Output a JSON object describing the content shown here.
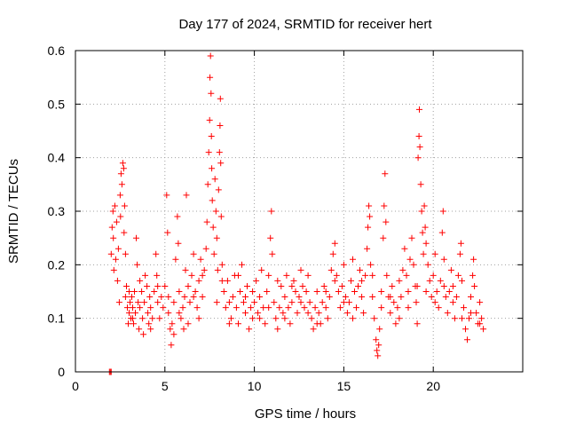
{
  "chart_data": {
    "type": "scatter",
    "title": "Day 177 of 2024, SRMTID for receiver hert",
    "xlabel": "GPS time / hours",
    "ylabel": "SRMTID / TECUs",
    "xlim": [
      0,
      25
    ],
    "ylim": [
      0,
      0.6
    ],
    "xticks": [
      0,
      5,
      10,
      15,
      20
    ],
    "yticks": [
      0,
      0.1,
      0.2,
      0.3,
      0.4,
      0.5,
      0.6
    ],
    "grid": true,
    "marker": "plus",
    "color": "#ff0000",
    "series": [
      {
        "name": "SRMTID",
        "points": [
          [
            1.9,
            0.0
          ],
          [
            1.95,
            0.0
          ],
          [
            2.0,
            0.0
          ],
          [
            2.0,
            0.22
          ],
          [
            2.05,
            0.27
          ],
          [
            2.1,
            0.3
          ],
          [
            2.12,
            0.25
          ],
          [
            2.15,
            0.19
          ],
          [
            2.2,
            0.31
          ],
          [
            2.25,
            0.21
          ],
          [
            2.3,
            0.28
          ],
          [
            2.35,
            0.17
          ],
          [
            2.4,
            0.23
          ],
          [
            2.45,
            0.13
          ],
          [
            2.5,
            0.33
          ],
          [
            2.52,
            0.29
          ],
          [
            2.55,
            0.37
          ],
          [
            2.6,
            0.35
          ],
          [
            2.65,
            0.39
          ],
          [
            2.7,
            0.38
          ],
          [
            2.72,
            0.26
          ],
          [
            2.75,
            0.31
          ],
          [
            2.8,
            0.22
          ],
          [
            2.85,
            0.16
          ],
          [
            2.9,
            0.12
          ],
          [
            2.95,
            0.09
          ],
          [
            3.0,
            0.11
          ],
          [
            3.05,
            0.13
          ],
          [
            3.1,
            0.1
          ],
          [
            3.15,
            0.14
          ],
          [
            3.2,
            0.12
          ],
          [
            3.25,
            0.09
          ],
          [
            3.3,
            0.15
          ],
          [
            3.35,
            0.11
          ],
          [
            3.4,
            0.25
          ],
          [
            3.45,
            0.2
          ],
          [
            3.5,
            0.13
          ],
          [
            3.55,
            0.08
          ],
          [
            3.6,
            0.12
          ],
          [
            3.7,
            0.15
          ],
          [
            3.75,
            0.1
          ],
          [
            3.8,
            0.07
          ],
          [
            3.85,
            0.13
          ],
          [
            3.9,
            0.18
          ],
          [
            4.0,
            0.16
          ],
          [
            4.05,
            0.11
          ],
          [
            4.1,
            0.09
          ],
          [
            4.15,
            0.14
          ],
          [
            4.2,
            0.12
          ],
          [
            4.3,
            0.1
          ],
          [
            4.4,
            0.15
          ],
          [
            4.5,
            0.22
          ],
          [
            4.55,
            0.18
          ],
          [
            4.6,
            0.13
          ],
          [
            4.7,
            0.1
          ],
          [
            4.8,
            0.14
          ],
          [
            4.9,
            0.12
          ],
          [
            5.0,
            0.16
          ],
          [
            5.1,
            0.33
          ],
          [
            5.15,
            0.26
          ],
          [
            5.2,
            0.11
          ],
          [
            5.3,
            0.08
          ],
          [
            5.35,
            0.05
          ],
          [
            5.4,
            0.09
          ],
          [
            5.5,
            0.13
          ],
          [
            5.6,
            0.21
          ],
          [
            5.7,
            0.29
          ],
          [
            5.75,
            0.24
          ],
          [
            5.8,
            0.15
          ],
          [
            5.9,
            0.1
          ],
          [
            6.0,
            0.12
          ],
          [
            6.05,
            0.08
          ],
          [
            6.1,
            0.14
          ],
          [
            6.15,
            0.19
          ],
          [
            6.2,
            0.33
          ],
          [
            6.3,
            0.16
          ],
          [
            6.4,
            0.13
          ],
          [
            6.5,
            0.18
          ],
          [
            6.6,
            0.22
          ],
          [
            6.7,
            0.15
          ],
          [
            6.8,
            0.12
          ],
          [
            6.9,
            0.17
          ],
          [
            7.0,
            0.21
          ],
          [
            7.1,
            0.14
          ],
          [
            7.2,
            0.19
          ],
          [
            7.3,
            0.23
          ],
          [
            7.35,
            0.28
          ],
          [
            7.4,
            0.35
          ],
          [
            7.45,
            0.41
          ],
          [
            7.5,
            0.47
          ],
          [
            7.52,
            0.55
          ],
          [
            7.55,
            0.59
          ],
          [
            7.58,
            0.52
          ],
          [
            7.6,
            0.44
          ],
          [
            7.62,
            0.38
          ],
          [
            7.65,
            0.32
          ],
          [
            7.7,
            0.27
          ],
          [
            7.75,
            0.22
          ],
          [
            7.8,
            0.36
          ],
          [
            7.85,
            0.3
          ],
          [
            7.9,
            0.25
          ],
          [
            7.95,
            0.19
          ],
          [
            8.0,
            0.34
          ],
          [
            8.05,
            0.41
          ],
          [
            8.08,
            0.46
          ],
          [
            8.1,
            0.51
          ],
          [
            8.12,
            0.39
          ],
          [
            8.15,
            0.29
          ],
          [
            8.2,
            0.2
          ],
          [
            8.3,
            0.15
          ],
          [
            8.4,
            0.12
          ],
          [
            8.5,
            0.17
          ],
          [
            8.6,
            0.13
          ],
          [
            8.7,
            0.1
          ],
          [
            8.8,
            0.14
          ],
          [
            8.9,
            0.18
          ],
          [
            9.0,
            0.12
          ],
          [
            9.1,
            0.09
          ],
          [
            9.2,
            0.15
          ],
          [
            9.3,
            0.2
          ],
          [
            9.4,
            0.13
          ],
          [
            9.5,
            0.11
          ],
          [
            9.6,
            0.16
          ],
          [
            9.7,
            0.08
          ],
          [
            9.8,
            0.12
          ],
          [
            9.9,
            0.1
          ],
          [
            10.0,
            0.13
          ],
          [
            10.1,
            0.17
          ],
          [
            10.2,
            0.11
          ],
          [
            10.3,
            0.14
          ],
          [
            10.4,
            0.19
          ],
          [
            10.5,
            0.12
          ],
          [
            10.6,
            0.09
          ],
          [
            10.7,
            0.15
          ],
          [
            10.8,
            0.18
          ],
          [
            10.9,
            0.25
          ],
          [
            10.95,
            0.3
          ],
          [
            11.0,
            0.22
          ],
          [
            11.1,
            0.13
          ],
          [
            11.2,
            0.1
          ],
          [
            11.3,
            0.08
          ],
          [
            11.4,
            0.12
          ],
          [
            11.5,
            0.16
          ],
          [
            11.6,
            0.11
          ],
          [
            11.7,
            0.14
          ],
          [
            11.8,
            0.18
          ],
          [
            11.9,
            0.12
          ],
          [
            12.0,
            0.09
          ],
          [
            12.1,
            0.13
          ],
          [
            12.2,
            0.17
          ],
          [
            12.3,
            0.15
          ],
          [
            12.4,
            0.11
          ],
          [
            12.5,
            0.14
          ],
          [
            12.6,
            0.19
          ],
          [
            12.7,
            0.16
          ],
          [
            12.8,
            0.12
          ],
          [
            12.9,
            0.15
          ],
          [
            13.0,
            0.18
          ],
          [
            13.1,
            0.13
          ],
          [
            13.2,
            0.1
          ],
          [
            13.3,
            0.08
          ],
          [
            13.4,
            0.12
          ],
          [
            13.5,
            0.15
          ],
          [
            13.6,
            0.11
          ],
          [
            13.7,
            0.09
          ],
          [
            13.8,
            0.13
          ],
          [
            13.9,
            0.16
          ],
          [
            14.0,
            0.12
          ],
          [
            14.1,
            0.1
          ],
          [
            14.2,
            0.14
          ],
          [
            14.3,
            0.19
          ],
          [
            14.4,
            0.22
          ],
          [
            14.5,
            0.24
          ],
          [
            14.6,
            0.18
          ],
          [
            14.7,
            0.15
          ],
          [
            14.8,
            0.12
          ],
          [
            14.9,
            0.16
          ],
          [
            15.0,
            0.2
          ],
          [
            15.1,
            0.14
          ],
          [
            15.2,
            0.11
          ],
          [
            15.3,
            0.13
          ],
          [
            15.4,
            0.17
          ],
          [
            15.5,
            0.21
          ],
          [
            15.6,
            0.15
          ],
          [
            15.7,
            0.12
          ],
          [
            15.8,
            0.16
          ],
          [
            15.9,
            0.19
          ],
          [
            16.0,
            0.14
          ],
          [
            16.1,
            0.11
          ],
          [
            16.2,
            0.18
          ],
          [
            16.3,
            0.23
          ],
          [
            16.35,
            0.27
          ],
          [
            16.4,
            0.31
          ],
          [
            16.45,
            0.29
          ],
          [
            16.5,
            0.2
          ],
          [
            16.6,
            0.14
          ],
          [
            16.7,
            0.1
          ],
          [
            16.8,
            0.06
          ],
          [
            16.85,
            0.04
          ],
          [
            16.9,
            0.03
          ],
          [
            16.95,
            0.05
          ],
          [
            17.0,
            0.08
          ],
          [
            17.1,
            0.12
          ],
          [
            17.2,
            0.25
          ],
          [
            17.25,
            0.31
          ],
          [
            17.3,
            0.37
          ],
          [
            17.35,
            0.28
          ],
          [
            17.4,
            0.18
          ],
          [
            17.5,
            0.14
          ],
          [
            17.6,
            0.11
          ],
          [
            17.7,
            0.16
          ],
          [
            17.8,
            0.13
          ],
          [
            17.9,
            0.09
          ],
          [
            18.0,
            0.12
          ],
          [
            18.1,
            0.17
          ],
          [
            18.2,
            0.14
          ],
          [
            18.3,
            0.19
          ],
          [
            18.4,
            0.23
          ],
          [
            18.5,
            0.18
          ],
          [
            18.6,
            0.15
          ],
          [
            18.7,
            0.21
          ],
          [
            18.8,
            0.25
          ],
          [
            18.9,
            0.2
          ],
          [
            19.0,
            0.16
          ],
          [
            19.05,
            0.13
          ],
          [
            19.1,
            0.09
          ],
          [
            19.15,
            0.4
          ],
          [
            19.2,
            0.44
          ],
          [
            19.22,
            0.49
          ],
          [
            19.25,
            0.42
          ],
          [
            19.3,
            0.35
          ],
          [
            19.35,
            0.3
          ],
          [
            19.4,
            0.26
          ],
          [
            19.45,
            0.22
          ],
          [
            19.5,
            0.31
          ],
          [
            19.55,
            0.27
          ],
          [
            19.6,
            0.24
          ],
          [
            19.7,
            0.2
          ],
          [
            19.8,
            0.17
          ],
          [
            19.9,
            0.14
          ],
          [
            20.0,
            0.18
          ],
          [
            20.1,
            0.22
          ],
          [
            20.2,
            0.15
          ],
          [
            20.3,
            0.12
          ],
          [
            20.4,
            0.17
          ],
          [
            20.5,
            0.26
          ],
          [
            20.55,
            0.3
          ],
          [
            20.6,
            0.21
          ],
          [
            20.7,
            0.14
          ],
          [
            20.8,
            0.11
          ],
          [
            20.9,
            0.15
          ],
          [
            21.0,
            0.19
          ],
          [
            21.1,
            0.13
          ],
          [
            21.2,
            0.1
          ],
          [
            21.3,
            0.14
          ],
          [
            21.4,
            0.18
          ],
          [
            21.5,
            0.22
          ],
          [
            21.55,
            0.24
          ],
          [
            21.6,
            0.17
          ],
          [
            21.7,
            0.12
          ],
          [
            21.8,
            0.08
          ],
          [
            21.9,
            0.06
          ],
          [
            22.0,
            0.1
          ],
          [
            22.1,
            0.14
          ],
          [
            22.2,
            0.18
          ],
          [
            22.25,
            0.21
          ],
          [
            22.3,
            0.16
          ],
          [
            22.4,
            0.11
          ],
          [
            22.5,
            0.09
          ],
          [
            22.6,
            0.13
          ],
          [
            22.7,
            0.1
          ],
          [
            22.8,
            0.08
          ],
          [
            2.8,
            0.14
          ],
          [
            3.0,
            0.15
          ],
          [
            3.2,
            0.1
          ],
          [
            3.6,
            0.17
          ],
          [
            4.2,
            0.08
          ],
          [
            4.6,
            0.16
          ],
          [
            5.2,
            0.14
          ],
          [
            5.5,
            0.07
          ],
          [
            5.8,
            0.11
          ],
          [
            6.3,
            0.09
          ],
          [
            6.6,
            0.14
          ],
          [
            6.9,
            0.1
          ],
          [
            7.1,
            0.18
          ],
          [
            7.9,
            0.13
          ],
          [
            8.2,
            0.17
          ],
          [
            8.6,
            0.09
          ],
          [
            9.1,
            0.18
          ],
          [
            9.5,
            0.14
          ],
          [
            9.9,
            0.15
          ],
          [
            10.3,
            0.1
          ],
          [
            10.8,
            0.12
          ],
          [
            11.3,
            0.17
          ],
          [
            11.7,
            0.1
          ],
          [
            12.1,
            0.16
          ],
          [
            12.6,
            0.13
          ],
          [
            13.0,
            0.11
          ],
          [
            13.5,
            0.09
          ],
          [
            14.0,
            0.15
          ],
          [
            14.5,
            0.17
          ],
          [
            15.0,
            0.13
          ],
          [
            15.5,
            0.1
          ],
          [
            16.0,
            0.17
          ],
          [
            16.6,
            0.18
          ],
          [
            17.1,
            0.15
          ],
          [
            17.6,
            0.14
          ],
          [
            18.1,
            0.1
          ],
          [
            18.6,
            0.12
          ],
          [
            19.1,
            0.16
          ],
          [
            19.6,
            0.15
          ],
          [
            20.1,
            0.13
          ],
          [
            20.6,
            0.16
          ],
          [
            21.1,
            0.16
          ],
          [
            21.6,
            0.1
          ],
          [
            22.1,
            0.11
          ],
          [
            22.6,
            0.09
          ]
        ]
      }
    ]
  }
}
